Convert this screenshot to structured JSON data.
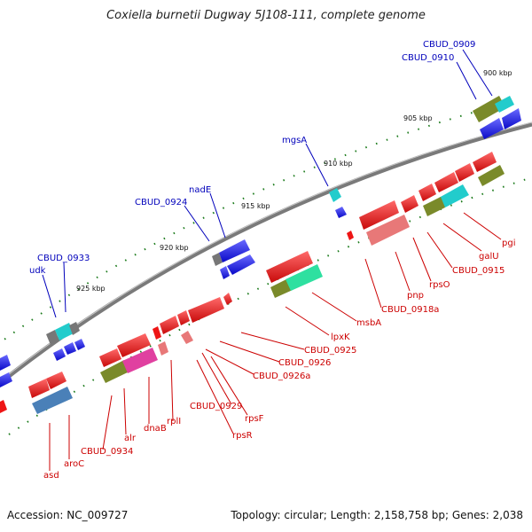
{
  "title": "Coxiella burnetii Dugway 5J108-111, complete genome",
  "footer": {
    "accession": "Accession: NC_009727",
    "summary": "Topology: circular; Length: 2,158,758 bp; Genes: 2,038"
  },
  "kbp_labels": [
    "900 kbp",
    "905 kbp",
    "910 kbp",
    "915 kbp",
    "920 kbp",
    "925 kbp"
  ],
  "blue_gene_labels": [
    "CBUD_0909",
    "CBUD_0910",
    "mgsA",
    "nadE",
    "CBUD_0924",
    "CBUD_0933",
    "udk"
  ],
  "red_gene_labels": [
    "pgi",
    "galU",
    "CBUD_0915",
    "rpsO",
    "pnp",
    "CBUD_0918a",
    "msbA",
    "lpxK",
    "CBUD_0925",
    "CBUD_0926",
    "CBUD_0926a",
    "CBUD_0929",
    "rpsF",
    "rpsR",
    "rplI",
    "dnaB",
    "alr",
    "CBUD_0934",
    "aroC",
    "asd"
  ],
  "colors": {
    "backbone": "#7a7a7a",
    "forward_cds": "#1515ee",
    "reverse_cds": "#ee1515",
    "rrna_like": "#e87878",
    "cyan": "#22cccc",
    "olive": "#7a8a2a",
    "teal": "#2ee0a0",
    "magenta": "#e040a0",
    "steel": "#4a80b8",
    "gray": "#777777",
    "tick": "#1a7a1a"
  }
}
